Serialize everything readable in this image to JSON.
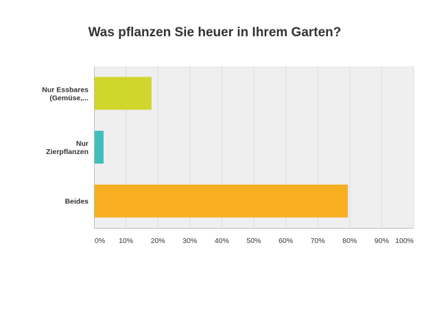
{
  "chart_data": {
    "type": "bar",
    "orientation": "horizontal",
    "title": "Was pflanzen Sie heuer in Ihrem Garten?",
    "categories": [
      [
        "Nur Essbares",
        "(Gemüse,..."
      ],
      [
        "Nur",
        "Zierpflanzen"
      ],
      [
        "Beides"
      ]
    ],
    "values": [
      17.9,
      2.9,
      79.3
    ],
    "colors": [
      "#cfd62c",
      "#3ebfba",
      "#f7ae20"
    ],
    "xlim": [
      0,
      100
    ],
    "ticks": [
      "0%",
      "10%",
      "20%",
      "30%",
      "40%",
      "50%",
      "60%",
      "70%",
      "80%",
      "90%",
      "100%"
    ],
    "grid": true,
    "plot_background": "#efefef",
    "xlabel": "",
    "ylabel": ""
  }
}
